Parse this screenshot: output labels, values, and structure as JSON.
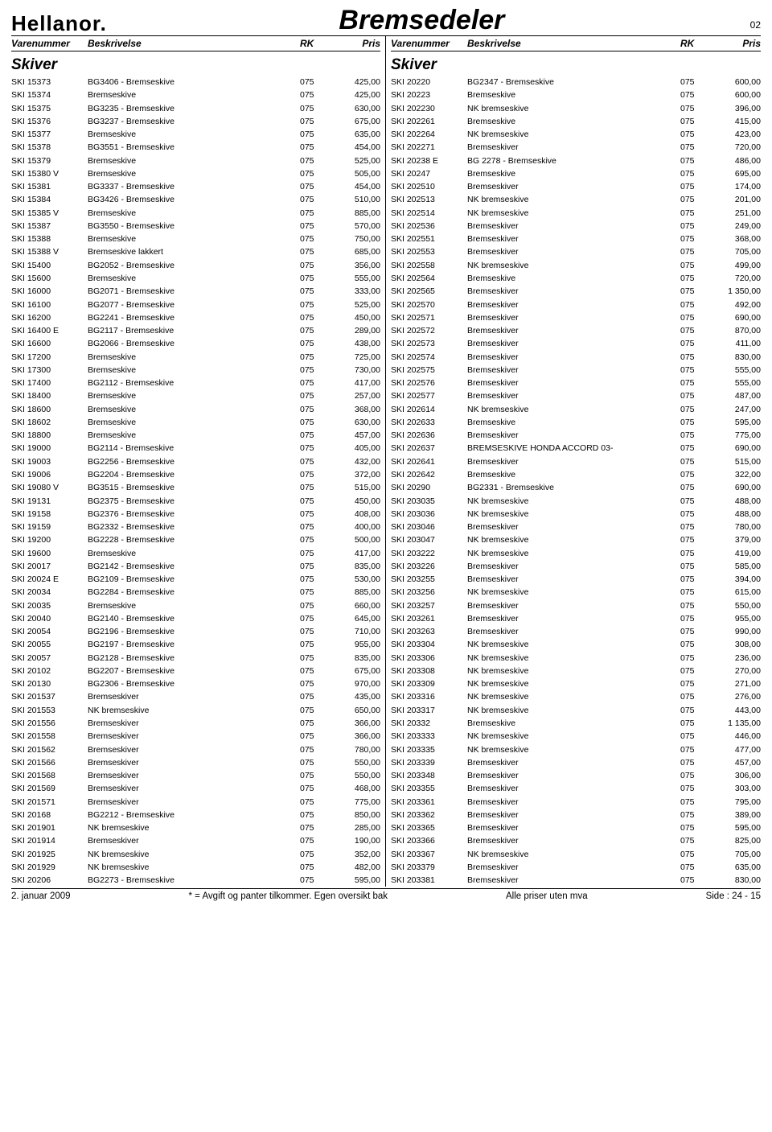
{
  "header": {
    "logo": "Hellanor.",
    "title": "Bremsedeler",
    "page_number": "02"
  },
  "column_headers": {
    "varenummer": "Varenummer",
    "beskrivelse": "Beskrivelse",
    "rk": "RK",
    "pris": "Pris"
  },
  "section_title": "Skiver",
  "left_rows": [
    [
      "SKI 15373",
      "BG3406 - Bremseskive",
      "075",
      "425,00"
    ],
    [
      "SKI 15374",
      "Bremseskive",
      "075",
      "425,00"
    ],
    [
      "SKI 15375",
      "BG3235 - Bremseskive",
      "075",
      "630,00"
    ],
    [
      "SKI 15376",
      "BG3237 - Bremseskive",
      "075",
      "675,00"
    ],
    [
      "SKI 15377",
      "Bremseskive",
      "075",
      "635,00"
    ],
    [
      "SKI 15378",
      "BG3551 - Bremseskive",
      "075",
      "454,00"
    ],
    [
      "SKI 15379",
      "Bremseskive",
      "075",
      "525,00"
    ],
    [
      "SKI 15380 V",
      "Bremseskive",
      "075",
      "505,00"
    ],
    [
      "SKI 15381",
      "BG3337 - Bremseskive",
      "075",
      "454,00"
    ],
    [
      "SKI 15384",
      "BG3426 - Bremseskive",
      "075",
      "510,00"
    ],
    [
      "SKI 15385 V",
      "Bremseskive",
      "075",
      "885,00"
    ],
    [
      "SKI 15387",
      "BG3550 - Bremseskive",
      "075",
      "570,00"
    ],
    [
      "SKI 15388",
      "Bremseskive",
      "075",
      "750,00"
    ],
    [
      "SKI 15388 V",
      "Bremseskive lakkert",
      "075",
      "685,00"
    ],
    [
      "SKI 15400",
      "BG2052 - Bremseskive",
      "075",
      "356,00"
    ],
    [
      "SKI 15600",
      "Bremseskive",
      "075",
      "555,00"
    ],
    [
      "SKI 16000",
      "BG2071 - Bremseskive",
      "075",
      "333,00"
    ],
    [
      "SKI 16100",
      "BG2077 - Bremseskive",
      "075",
      "525,00"
    ],
    [
      "SKI 16200",
      "BG2241 - Bremseskive",
      "075",
      "450,00"
    ],
    [
      "SKI 16400 E",
      "BG2117 - Bremseskive",
      "075",
      "289,00"
    ],
    [
      "SKI 16600",
      "BG2066 - Bremseskive",
      "075",
      "438,00"
    ],
    [
      "SKI 17200",
      "Bremseskive",
      "075",
      "725,00"
    ],
    [
      "SKI 17300",
      "Bremseskive",
      "075",
      "730,00"
    ],
    [
      "SKI 17400",
      "BG2112 - Bremseskive",
      "075",
      "417,00"
    ],
    [
      "SKI 18400",
      "Bremseskive",
      "075",
      "257,00"
    ],
    [
      "SKI 18600",
      "Bremseskive",
      "075",
      "368,00"
    ],
    [
      "SKI 18602",
      "Bremseskive",
      "075",
      "630,00"
    ],
    [
      "SKI 18800",
      "Bremseskive",
      "075",
      "457,00"
    ],
    [
      "SKI 19000",
      "BG2114 - Bremseskive",
      "075",
      "405,00"
    ],
    [
      "SKI 19003",
      "BG2256 - Bremseskive",
      "075",
      "432,00"
    ],
    [
      "SKI 19006",
      "BG2204 - Bremseskive",
      "075",
      "372,00"
    ],
    [
      "SKI 19080 V",
      "BG3515 - Bremseskive",
      "075",
      "515,00"
    ],
    [
      "SKI 19131",
      "BG2375 - Bremseskive",
      "075",
      "450,00"
    ],
    [
      "SKI 19158",
      "BG2376 - Bremseskive",
      "075",
      "408,00"
    ],
    [
      "SKI 19159",
      "BG2332 - Bremseskive",
      "075",
      "400,00"
    ],
    [
      "SKI 19200",
      "BG2228 - Bremseskive",
      "075",
      "500,00"
    ],
    [
      "SKI 19600",
      "Bremseskive",
      "075",
      "417,00"
    ],
    [
      "SKI 20017",
      "BG2142 - Bremseskive",
      "075",
      "835,00"
    ],
    [
      "SKI 20024 E",
      "BG2109 - Bremseskive",
      "075",
      "530,00"
    ],
    [
      "SKI 20034",
      "BG2284 - Bremseskive",
      "075",
      "885,00"
    ],
    [
      "SKI 20035",
      "Bremseskive",
      "075",
      "660,00"
    ],
    [
      "SKI 20040",
      "BG2140 - Bremseskive",
      "075",
      "645,00"
    ],
    [
      "SKI 20054",
      "BG2196 - Bremseskive",
      "075",
      "710,00"
    ],
    [
      "SKI 20055",
      "BG2197 - Bremseskive",
      "075",
      "955,00"
    ],
    [
      "SKI 20057",
      "BG2128 - Bremseskive",
      "075",
      "835,00"
    ],
    [
      "SKI 20102",
      "BG2207 - Bremseskive",
      "075",
      "675,00"
    ],
    [
      "SKI 20130",
      "BG2306 - Bremseskive",
      "075",
      "970,00"
    ],
    [
      "SKI 201537",
      "Bremseskiver",
      "075",
      "435,00"
    ],
    [
      "SKI 201553",
      "NK bremseskive",
      "075",
      "650,00"
    ],
    [
      "SKI 201556",
      "Bremseskiver",
      "075",
      "366,00"
    ],
    [
      "SKI 201558",
      "Bremseskiver",
      "075",
      "366,00"
    ],
    [
      "SKI 201562",
      "Bremseskiver",
      "075",
      "780,00"
    ],
    [
      "SKI 201566",
      "Bremseskiver",
      "075",
      "550,00"
    ],
    [
      "SKI 201568",
      "Bremseskiver",
      "075",
      "550,00"
    ],
    [
      "SKI 201569",
      "Bremseskiver",
      "075",
      "468,00"
    ],
    [
      "SKI 201571",
      "Bremseskiver",
      "075",
      "775,00"
    ],
    [
      "SKI 20168",
      "BG2212 - Bremseskive",
      "075",
      "850,00"
    ],
    [
      "SKI 201901",
      "NK bremseskive",
      "075",
      "285,00"
    ],
    [
      "SKI 201914",
      "Bremseskiver",
      "075",
      "190,00"
    ],
    [
      "SKI 201925",
      "NK bremseskive",
      "075",
      "352,00"
    ],
    [
      "SKI 201929",
      "NK bremseskive",
      "075",
      "482,00"
    ],
    [
      "SKI 20206",
      "BG2273 - Bremseskive",
      "075",
      "595,00"
    ]
  ],
  "right_rows": [
    [
      "SKI 20220",
      "BG2347 - Bremseskive",
      "075",
      "600,00"
    ],
    [
      "SKI 20223",
      "Bremseskive",
      "075",
      "600,00"
    ],
    [
      "SKI 202230",
      "NK bremseskive",
      "075",
      "396,00"
    ],
    [
      "SKI 202261",
      "Bremseskive",
      "075",
      "415,00"
    ],
    [
      "SKI 202264",
      "NK bremseskive",
      "075",
      "423,00"
    ],
    [
      "SKI 202271",
      "Bremseskiver",
      "075",
      "720,00"
    ],
    [
      "SKI 20238 E",
      "BG 2278  - Bremseskive",
      "075",
      "486,00"
    ],
    [
      "SKI 20247",
      "Bremseskive",
      "075",
      "695,00"
    ],
    [
      "SKI 202510",
      "Bremseskiver",
      "075",
      "174,00"
    ],
    [
      "SKI 202513",
      "NK bremseskive",
      "075",
      "201,00"
    ],
    [
      "SKI 202514",
      "NK bremseskive",
      "075",
      "251,00"
    ],
    [
      "SKI 202536",
      "Bremseskiver",
      "075",
      "249,00"
    ],
    [
      "SKI 202551",
      "Bremseskiver",
      "075",
      "368,00"
    ],
    [
      "SKI 202553",
      "Bremseskiver",
      "075",
      "705,00"
    ],
    [
      "SKI 202558",
      "NK bremseskive",
      "075",
      "499,00"
    ],
    [
      "SKI 202564",
      "Bremseskive",
      "075",
      "720,00"
    ],
    [
      "SKI 202565",
      "Bremseskiver",
      "075",
      "1 350,00"
    ],
    [
      "SKI 202570",
      "Bremseskiver",
      "075",
      "492,00"
    ],
    [
      "SKI 202571",
      "Bremseskiver",
      "075",
      "690,00"
    ],
    [
      "SKI 202572",
      "Bremseskiver",
      "075",
      "870,00"
    ],
    [
      "SKI 202573",
      "Bremseskiver",
      "075",
      "411,00"
    ],
    [
      "SKI 202574",
      "Bremseskiver",
      "075",
      "830,00"
    ],
    [
      "SKI 202575",
      "Bremseskiver",
      "075",
      "555,00"
    ],
    [
      "SKI 202576",
      "Bremseskiver",
      "075",
      "555,00"
    ],
    [
      "SKI 202577",
      "Bremseskiver",
      "075",
      "487,00"
    ],
    [
      "SKI 202614",
      "NK bremseskive",
      "075",
      "247,00"
    ],
    [
      "SKI 202633",
      "Bremseskive",
      "075",
      "595,00"
    ],
    [
      "SKI 202636",
      "Bremseskiver",
      "075",
      "775,00"
    ],
    [
      "SKI 202637",
      "BREMSESKIVE HONDA ACCORD 03-",
      "075",
      "690,00"
    ],
    [
      "SKI 202641",
      "Bremseskiver",
      "075",
      "515,00"
    ],
    [
      "SKI 202642",
      "Bremseskive",
      "075",
      "322,00"
    ],
    [
      "SKI 20290",
      "BG2331 - Bremseskive",
      "075",
      "690,00"
    ],
    [
      "SKI 203035",
      "NK bremseskive",
      "075",
      "488,00"
    ],
    [
      "SKI 203036",
      "NK bremseskive",
      "075",
      "488,00"
    ],
    [
      "SKI 203046",
      "Bremseskiver",
      "075",
      "780,00"
    ],
    [
      "SKI 203047",
      "NK bremseskive",
      "075",
      "379,00"
    ],
    [
      "SKI 203222",
      "NK bremseskive",
      "075",
      "419,00"
    ],
    [
      "SKI 203226",
      "Bremseskiver",
      "075",
      "585,00"
    ],
    [
      "SKI 203255",
      "Bremseskiver",
      "075",
      "394,00"
    ],
    [
      "SKI 203256",
      "NK bremseskive",
      "075",
      "615,00"
    ],
    [
      "SKI 203257",
      "Bremseskiver",
      "075",
      "550,00"
    ],
    [
      "SKI 203261",
      "Bremseskiver",
      "075",
      "955,00"
    ],
    [
      "SKI 203263",
      "Bremseskiver",
      "075",
      "990,00"
    ],
    [
      "SKI 203304",
      "NK bremseskive",
      "075",
      "308,00"
    ],
    [
      "SKI 203306",
      "NK bremseskive",
      "075",
      "236,00"
    ],
    [
      "SKI 203308",
      "NK bremseskive",
      "075",
      "270,00"
    ],
    [
      "SKI 203309",
      "NK bremseskive",
      "075",
      "271,00"
    ],
    [
      "SKI 203316",
      "NK bremseskive",
      "075",
      "276,00"
    ],
    [
      "SKI 203317",
      "NK bremseskive",
      "075",
      "443,00"
    ],
    [
      "SKI 20332",
      "Bremseskive",
      "075",
      "1 135,00"
    ],
    [
      "SKI 203333",
      "NK bremseskive",
      "075",
      "446,00"
    ],
    [
      "SKI 203335",
      "NK bremseskive",
      "075",
      "477,00"
    ],
    [
      "SKI 203339",
      "Bremseskiver",
      "075",
      "457,00"
    ],
    [
      "SKI 203348",
      "Bremseskiver",
      "075",
      "306,00"
    ],
    [
      "SKI 203355",
      "Bremseskiver",
      "075",
      "303,00"
    ],
    [
      "SKI 203361",
      "Bremseskiver",
      "075",
      "795,00"
    ],
    [
      "SKI 203362",
      "Bremseskiver",
      "075",
      "389,00"
    ],
    [
      "SKI 203365",
      "Bremseskiver",
      "075",
      "595,00"
    ],
    [
      "SKI 203366",
      "Bremseskiver",
      "075",
      "825,00"
    ],
    [
      "SKI 203367",
      "NK bremseskive",
      "075",
      "705,00"
    ],
    [
      "SKI 203379",
      "Bremseskiver",
      "075",
      "635,00"
    ],
    [
      "SKI 203381",
      "Bremseskiver",
      "075",
      "830,00"
    ]
  ],
  "footer": {
    "date": "2. januar 2009",
    "note": "* = Avgift og panter tilkommer. Egen oversikt bak",
    "price_note": "Alle priser uten mva",
    "page": "Side : 24 - 15"
  }
}
